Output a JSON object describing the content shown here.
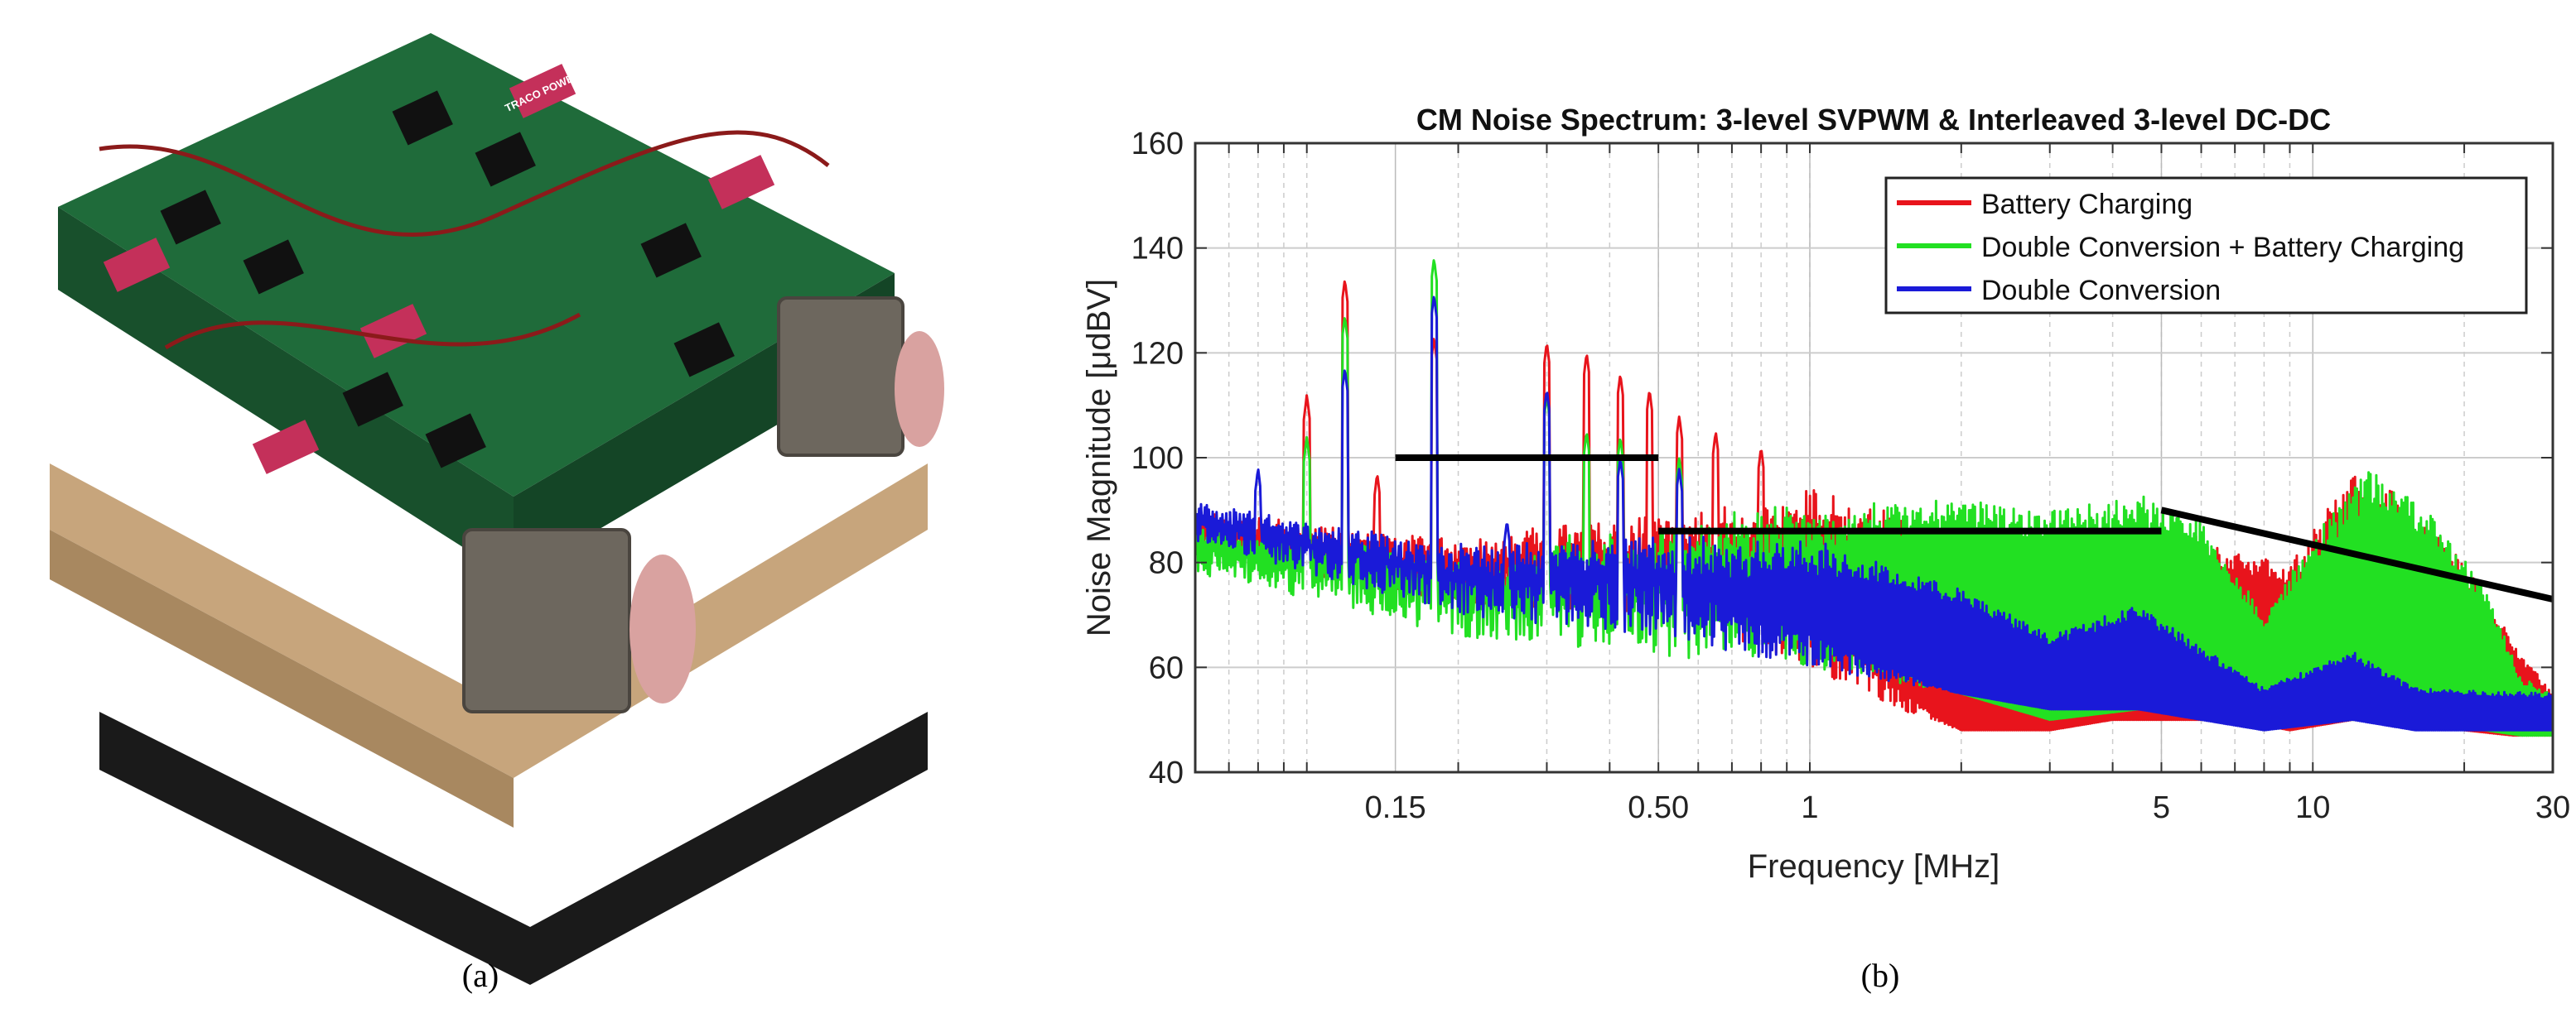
{
  "captions": {
    "a": "(a)",
    "b": "(b)"
  },
  "photo": {
    "subject": "prototype power converter hardware",
    "module_brand_text": "TRACO POWER"
  },
  "chart_data": {
    "type": "line",
    "title": "CM Noise Spectrum: 3-level SVPWM & Interleaved 3-level DC-DC",
    "xlabel": "Frequency [MHz]",
    "ylabel": "Noise Magnitude [μdBV]",
    "xscale": "log",
    "xlim": [
      0.06,
      30
    ],
    "ylim": [
      40,
      160
    ],
    "xticks": [
      0.15,
      0.5,
      1,
      5,
      10,
      30
    ],
    "xtick_labels": [
      "0.15",
      "0.50",
      "1",
      "5",
      "10",
      "30"
    ],
    "yticks": [
      40,
      60,
      80,
      100,
      120,
      140,
      160
    ],
    "ytick_labels": [
      "40",
      "60",
      "80",
      "100",
      "120",
      "140",
      "160"
    ],
    "grid": true,
    "legend_position": "top-right",
    "series": [
      {
        "name": "Battery Charging",
        "color": "#e8141c",
        "band": [
          [
            0.06,
            82,
            90
          ],
          [
            0.2,
            72,
            85
          ],
          [
            0.5,
            70,
            90
          ],
          [
            1,
            60,
            95
          ],
          [
            1.5,
            52,
            90
          ],
          [
            2,
            48,
            82
          ],
          [
            3,
            48,
            80
          ],
          [
            4,
            50,
            88
          ],
          [
            5,
            50,
            88
          ],
          [
            7,
            50,
            82
          ],
          [
            9,
            48,
            80
          ],
          [
            12,
            50,
            97
          ],
          [
            15,
            50,
            93
          ],
          [
            20,
            48,
            80
          ],
          [
            25,
            47,
            65
          ],
          [
            30,
            47,
            55
          ]
        ],
        "peaks": [
          [
            0.1,
            112
          ],
          [
            0.119,
            134
          ],
          [
            0.138,
            97
          ],
          [
            0.179,
            123
          ],
          [
            0.3,
            122
          ],
          [
            0.36,
            120
          ],
          [
            0.42,
            116
          ],
          [
            0.48,
            113
          ],
          [
            0.55,
            108
          ],
          [
            0.65,
            105
          ],
          [
            0.8,
            102
          ]
        ]
      },
      {
        "name": "Double Conversion + Battery Charging",
        "color": "#22e022",
        "band": [
          [
            0.06,
            78,
            88
          ],
          [
            0.2,
            66,
            82
          ],
          [
            0.5,
            62,
            88
          ],
          [
            1,
            60,
            92
          ],
          [
            2,
            55,
            92
          ],
          [
            3,
            50,
            90
          ],
          [
            4.5,
            52,
            93
          ],
          [
            6,
            52,
            88
          ],
          [
            8,
            50,
            70
          ],
          [
            10,
            50,
            85
          ],
          [
            13,
            50,
            98
          ],
          [
            17,
            50,
            90
          ],
          [
            22,
            48,
            75
          ],
          [
            26,
            47,
            58
          ],
          [
            30,
            47,
            55
          ]
        ],
        "peaks": [
          [
            0.1,
            104
          ],
          [
            0.119,
            127
          ],
          [
            0.179,
            138
          ],
          [
            0.3,
            112
          ],
          [
            0.36,
            105
          ],
          [
            0.42,
            104
          ],
          [
            0.55,
            100
          ]
        ]
      },
      {
        "name": "Double Conversion",
        "color": "#1a1ad8",
        "band": [
          [
            0.06,
            84,
            92
          ],
          [
            0.2,
            70,
            84
          ],
          [
            0.5,
            66,
            86
          ],
          [
            1,
            60,
            85
          ],
          [
            2,
            55,
            75
          ],
          [
            3,
            52,
            66
          ],
          [
            4.5,
            52,
            72
          ],
          [
            6,
            50,
            64
          ],
          [
            8,
            48,
            56
          ],
          [
            12,
            50,
            63
          ],
          [
            16,
            48,
            56
          ],
          [
            30,
            48,
            55
          ]
        ],
        "peaks": [
          [
            0.08,
            98
          ],
          [
            0.119,
            117
          ],
          [
            0.179,
            131
          ],
          [
            0.25,
            88
          ],
          [
            0.3,
            113
          ],
          [
            0.42,
            100
          ],
          [
            0.55,
            98
          ]
        ]
      }
    ],
    "reference_lines": [
      {
        "points": [
          [
            0.15,
            100
          ],
          [
            0.5,
            100
          ]
        ]
      },
      {
        "points": [
          [
            0.5,
            86
          ],
          [
            5,
            86
          ]
        ]
      },
      {
        "points": [
          [
            5,
            90
          ],
          [
            30,
            73
          ]
        ]
      }
    ]
  }
}
